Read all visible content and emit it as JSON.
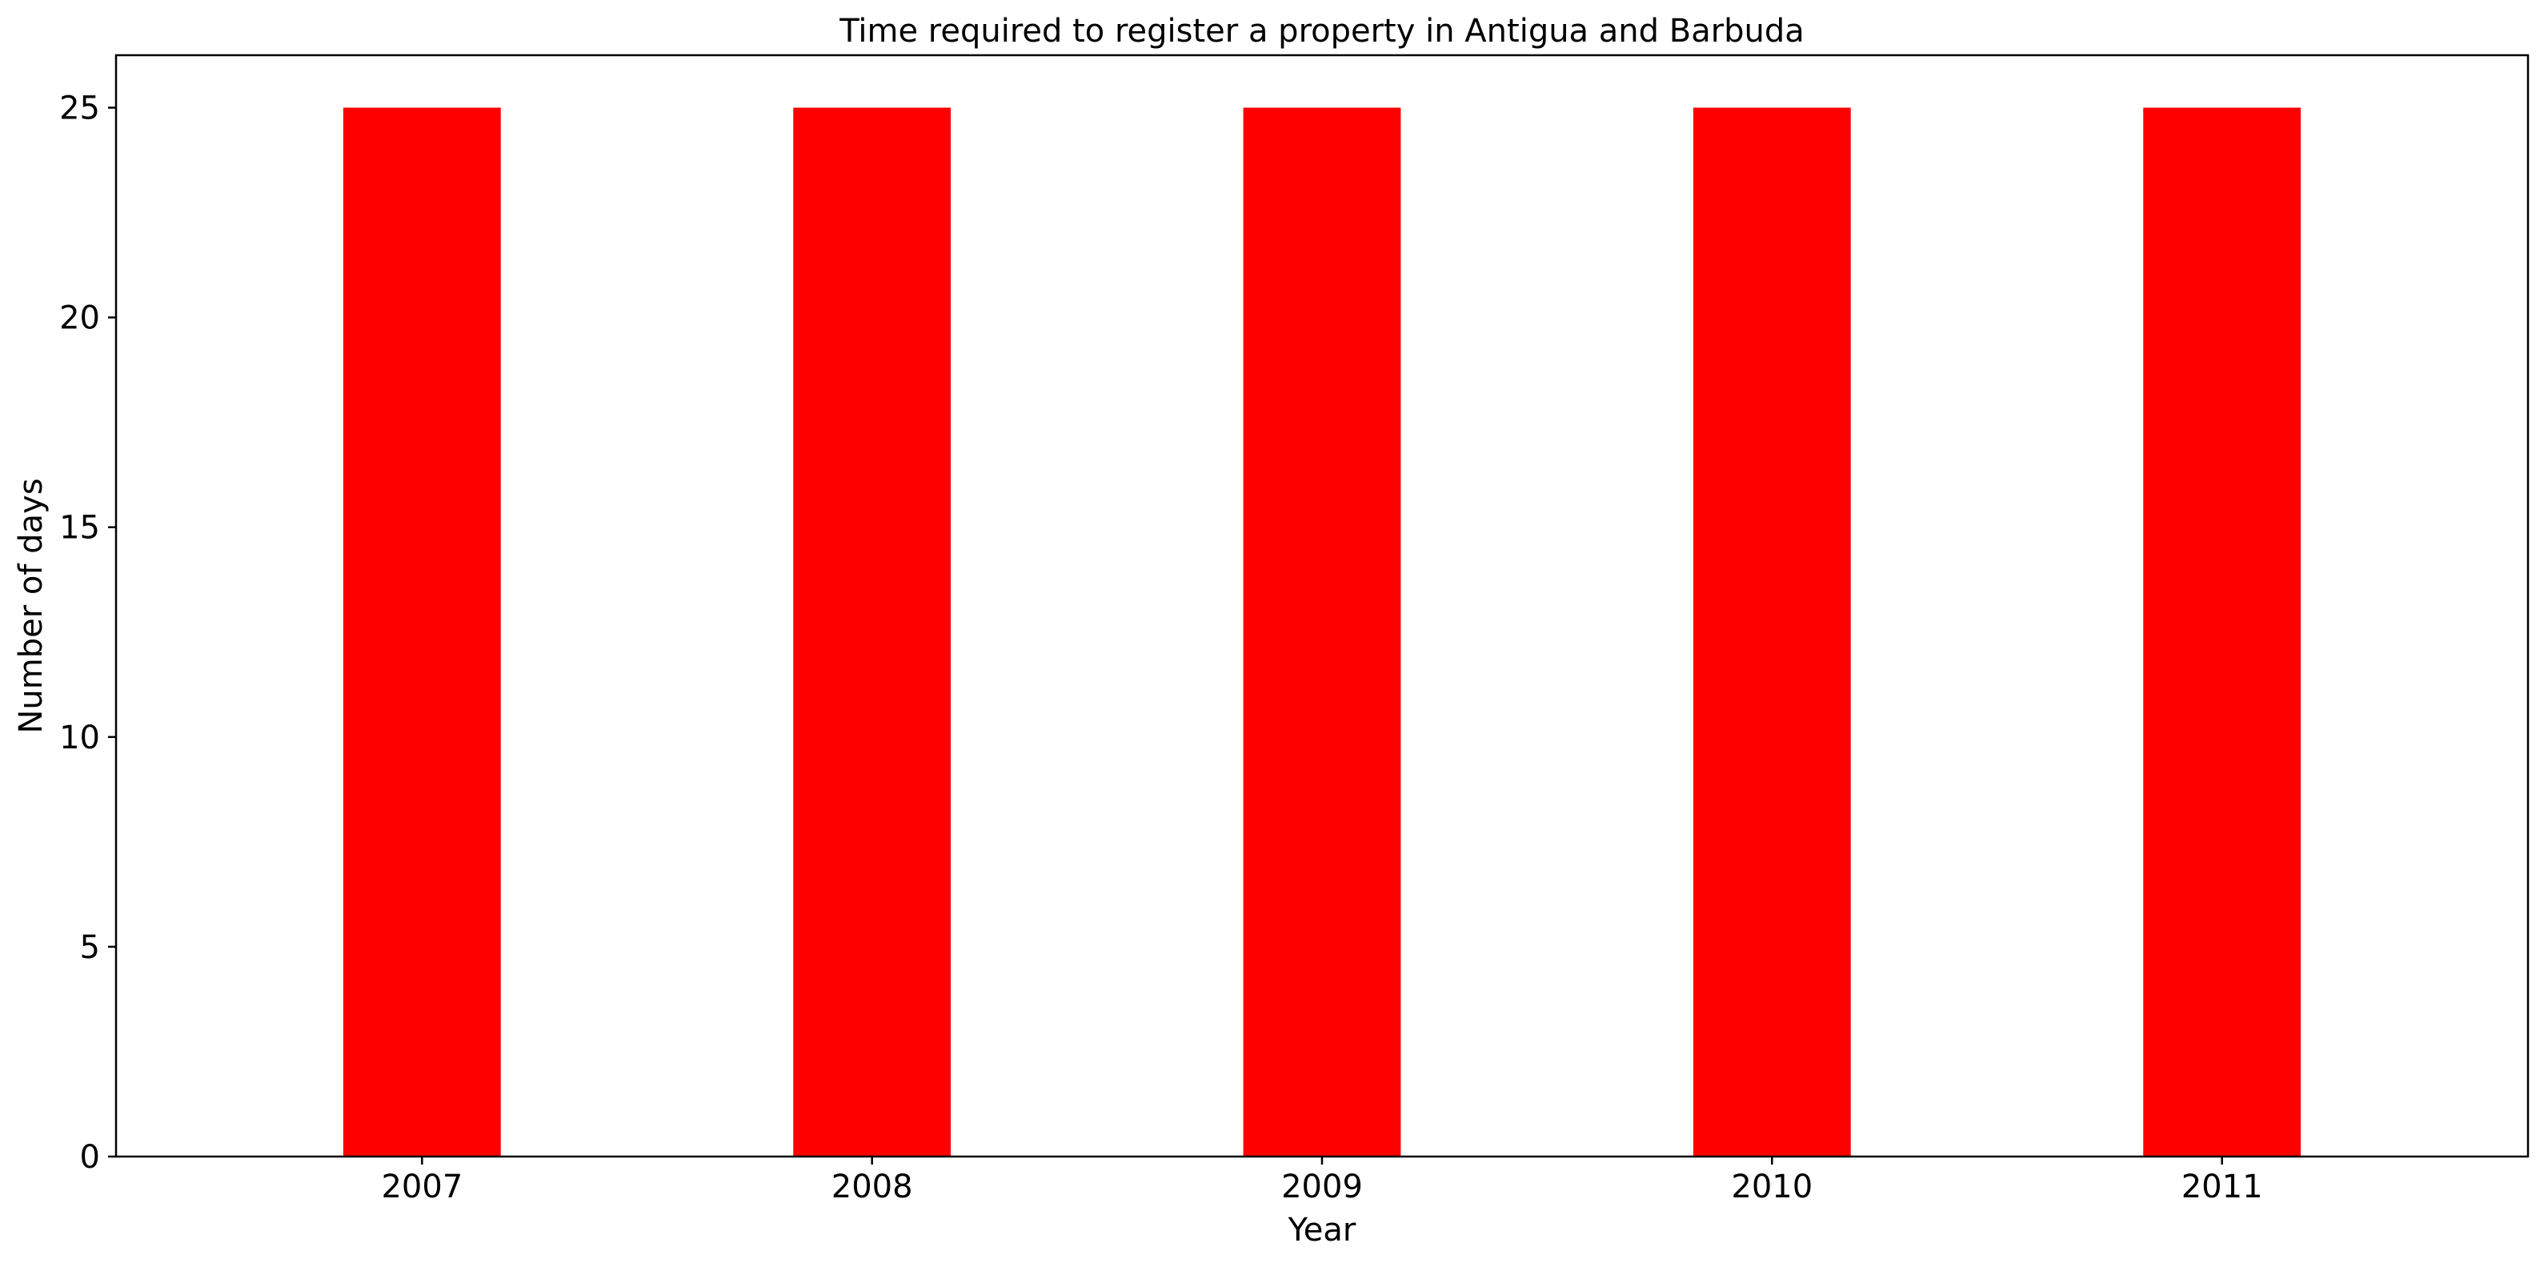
{
  "chart_data": {
    "type": "bar",
    "title": "Time required to register a property in Antigua and Barbuda",
    "xlabel": "Year",
    "ylabel": "Number of days",
    "categories": [
      "2007",
      "2008",
      "2009",
      "2010",
      "2011"
    ],
    "values": [
      25,
      25,
      25,
      25,
      25
    ],
    "ylim": [
      0,
      26.25
    ],
    "yticks": [
      0,
      5,
      10,
      15,
      20,
      25
    ],
    "bar_color": "#ff0000",
    "grid": false,
    "legend": "none"
  }
}
